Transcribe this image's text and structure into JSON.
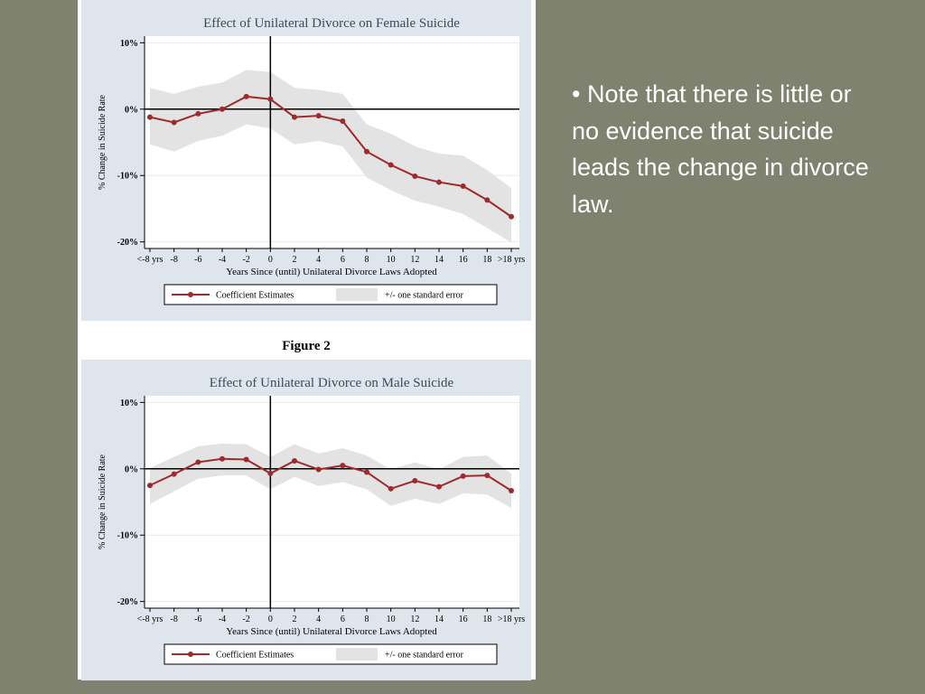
{
  "chart_data": [
    {
      "type": "line",
      "title": "Effect of Unilateral Divorce on Female Suicide",
      "y_label": "% Change in Suicide Rate",
      "x_label": "Years Since (until) Unilateral Divorce Laws Adopted",
      "categories": [
        "<-8 yrs",
        "-8",
        "-6",
        "-4",
        "-2",
        "0",
        "2",
        "4",
        "6",
        "8",
        "10",
        "12",
        "14",
        "16",
        "18",
        ">18 yrs"
      ],
      "series": [
        {
          "name": "Coefficient Estimates",
          "color": "#9e2a2b",
          "values": [
            -1.2,
            -2.0,
            -0.7,
            0.0,
            1.9,
            1.5,
            -1.2,
            -1.0,
            -1.8,
            -6.4,
            -8.4,
            -10.1,
            -11.0,
            -11.6,
            -13.7,
            -16.2
          ]
        },
        {
          "name": "+/- one standard error",
          "color": "#e3e3e3",
          "upper": [
            3.2,
            2.3,
            3.4,
            4.0,
            5.9,
            5.6,
            3.2,
            2.9,
            2.3,
            -2.3,
            -3.7,
            -5.6,
            -6.7,
            -7.0,
            -9.2,
            -11.9
          ],
          "lower": [
            -5.3,
            -6.4,
            -4.8,
            -4.0,
            -2.3,
            -2.9,
            -5.3,
            -4.8,
            -5.6,
            -10.3,
            -12.2,
            -13.8,
            -14.7,
            -15.8,
            -17.9,
            -20.1
          ]
        }
      ],
      "ylim": [
        -21,
        11
      ],
      "yticks": [
        {
          "value": 10,
          "label": "10%"
        },
        {
          "value": 0,
          "label": "0%"
        },
        {
          "value": -10,
          "label": "-10%"
        },
        {
          "value": -20,
          "label": "-20%"
        }
      ],
      "grid": true,
      "refline_y": 0,
      "refline_x": "0",
      "legend": "bottom"
    },
    {
      "type": "line",
      "title": "Effect of Unilateral Divorce on Male Suicide",
      "y_label": "% Change in Suicide Rate",
      "x_label": "Years Since (until) Unilateral Divorce Laws Adopted",
      "categories": [
        "<-8 yrs",
        "-8",
        "-6",
        "-4",
        "-2",
        "0",
        "2",
        "4",
        "6",
        "8",
        "10",
        "12",
        "14",
        "16",
        "18",
        ">18 yrs"
      ],
      "series": [
        {
          "name": "Coefficient Estimates",
          "color": "#9e2a2b",
          "values": [
            -2.5,
            -0.8,
            1.0,
            1.5,
            1.4,
            -0.7,
            1.2,
            -0.1,
            0.5,
            -0.5,
            -3.0,
            -1.8,
            -2.7,
            -1.1,
            -1.0,
            -3.3
          ]
        },
        {
          "name": "+/- one standard error",
          "color": "#e3e3e3",
          "upper": [
            0.1,
            1.8,
            3.4,
            3.8,
            3.7,
            1.8,
            3.7,
            2.3,
            3.1,
            2.0,
            -0.1,
            1.0,
            -0.1,
            1.8,
            2.0,
            -0.7
          ],
          "lower": [
            -5.3,
            -3.4,
            -1.5,
            -1.0,
            -1.0,
            -3.1,
            -1.2,
            -2.6,
            -2.0,
            -3.1,
            -5.6,
            -4.5,
            -5.3,
            -3.7,
            -3.9,
            -5.9
          ]
        }
      ],
      "ylim": [
        -21,
        11
      ],
      "yticks": [
        {
          "value": 10,
          "label": "10%"
        },
        {
          "value": 0,
          "label": "0%"
        },
        {
          "value": -10,
          "label": "-10%"
        },
        {
          "value": -20,
          "label": "-20%"
        }
      ],
      "grid": true,
      "refline_y": 0,
      "refline_x": "0",
      "legend": "bottom"
    }
  ],
  "figure_label": "Figure 2",
  "note": "• Note that there is little or no evidence that suicide leads the change in divorce law."
}
